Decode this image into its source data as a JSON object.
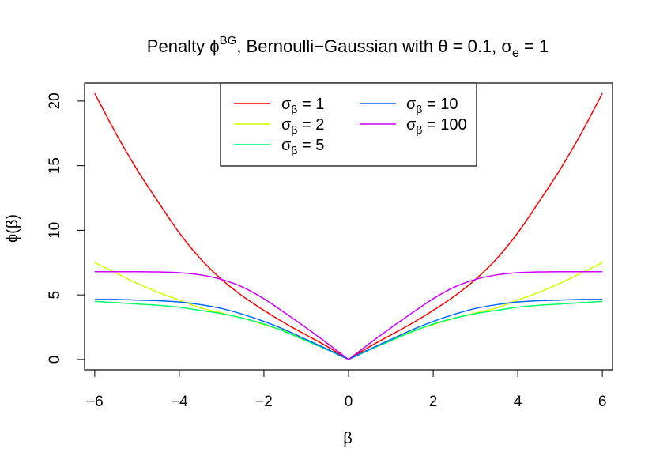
{
  "chart_data": {
    "type": "line",
    "title": {
      "text": "Penalty ϕ",
      "superscript": "BG",
      "rest": ", Bernoulli−Gaussian with θ = 0.1, σ",
      "subscript": "e",
      "tail": " = 1"
    },
    "xlabel": "β",
    "ylabel": "ϕ(β)",
    "xlim": [
      -6.24,
      6.24
    ],
    "ylim": [
      -0.8,
      21.4
    ],
    "x_ticks": [
      -6,
      -4,
      -2,
      0,
      2,
      4,
      6
    ],
    "x_tick_labels": [
      "−6",
      "−4",
      "−2",
      "0",
      "2",
      "4",
      "6"
    ],
    "y_ticks": [
      0,
      5,
      10,
      15,
      20
    ],
    "y_tick_labels": [
      "0",
      "5",
      "10",
      "15",
      "20"
    ],
    "grid": false,
    "legend_placement": "top-center",
    "x": [
      -6,
      -5.5,
      -5,
      -4.5,
      -4,
      -3.5,
      -3,
      -2.5,
      -2,
      -1.5,
      -1,
      -0.5,
      0,
      0.5,
      1,
      1.5,
      2,
      2.5,
      3,
      3.5,
      4,
      4.5,
      5,
      5.5,
      6
    ],
    "series": [
      {
        "label": "1",
        "color": "#ff0000",
        "values": [
          20.6,
          17.5,
          14.7,
          12.2,
          9.8,
          7.8,
          6.2,
          4.9,
          3.8,
          2.8,
          1.9,
          1.0,
          0,
          1.0,
          1.9,
          2.8,
          3.8,
          4.9,
          6.2,
          7.8,
          9.8,
          12.2,
          14.7,
          17.5,
          20.6
        ]
      },
      {
        "label": "2",
        "color": "#ccff00",
        "values": [
          7.5,
          6.7,
          5.9,
          5.2,
          4.6,
          4.0,
          3.6,
          3.2,
          2.7,
          2.2,
          1.5,
          0.8,
          0,
          0.8,
          1.5,
          2.2,
          2.7,
          3.2,
          3.6,
          4.0,
          4.6,
          5.2,
          5.9,
          6.7,
          7.5
        ]
      },
      {
        "label": "5",
        "color": "#00ff66",
        "values": [
          4.5,
          4.4,
          4.3,
          4.2,
          4.05,
          3.8,
          3.55,
          3.2,
          2.75,
          2.15,
          1.45,
          0.75,
          0,
          0.75,
          1.45,
          2.15,
          2.75,
          3.2,
          3.55,
          3.8,
          4.05,
          4.2,
          4.3,
          4.4,
          4.5
        ]
      },
      {
        "label": "10",
        "color": "#0066ff",
        "values": [
          4.65,
          4.65,
          4.6,
          4.55,
          4.45,
          4.25,
          3.95,
          3.5,
          2.95,
          2.3,
          1.55,
          0.8,
          0,
          0.8,
          1.55,
          2.3,
          2.95,
          3.5,
          3.95,
          4.25,
          4.45,
          4.55,
          4.6,
          4.65,
          4.65
        ]
      },
      {
        "label": "100",
        "color": "#cc00ff",
        "values": [
          6.8,
          6.8,
          6.8,
          6.78,
          6.72,
          6.55,
          6.2,
          5.6,
          4.7,
          3.6,
          2.45,
          1.25,
          0,
          1.25,
          2.45,
          3.6,
          4.7,
          5.6,
          6.2,
          6.55,
          6.72,
          6.78,
          6.8,
          6.8,
          6.8
        ]
      }
    ],
    "legend": {
      "symbol": "σ",
      "subscript": "β",
      "equals": " = "
    }
  }
}
